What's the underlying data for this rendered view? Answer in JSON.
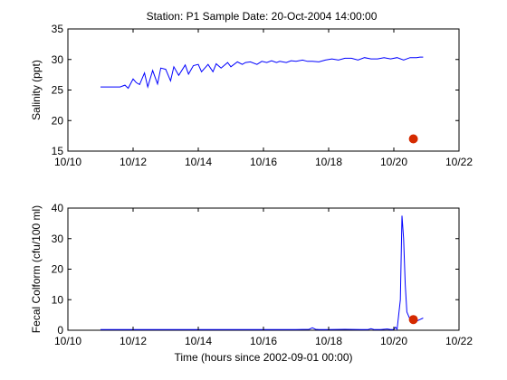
{
  "chart_data": [
    {
      "type": "line",
      "title": "Station: P1  Sample Date: 20-Oct-2004 14:00:00",
      "xlabel": "",
      "ylabel": "Salinity (ppt)",
      "xlim": [
        "10/10",
        "10/22"
      ],
      "ylim": [
        15,
        35
      ],
      "x_ticks": [
        "10/10",
        "10/12",
        "10/14",
        "10/16",
        "10/18",
        "10/20",
        "10/22"
      ],
      "y_ticks": [
        15,
        20,
        25,
        30,
        35
      ],
      "grid": false,
      "colors": {
        "line": "#0000ff",
        "marker": "#d52a00"
      },
      "series": [
        {
          "x_days_from_1010": [
            1.0,
            1.3,
            1.6,
            1.75,
            1.85,
            2.0,
            2.1,
            2.2,
            2.35,
            2.45,
            2.6,
            2.75,
            2.85,
            3.0,
            3.15,
            3.25,
            3.4,
            3.6,
            3.7,
            3.85,
            4.0,
            4.1,
            4.3,
            4.45,
            4.55,
            4.7,
            4.9,
            5.0,
            5.2,
            5.35,
            5.45,
            5.6,
            5.8,
            5.95,
            6.1,
            6.25,
            6.4,
            6.5,
            6.7,
            6.85,
            7.0,
            7.2,
            7.35,
            7.5,
            7.7,
            7.9,
            8.1,
            8.3,
            8.5,
            8.7,
            8.9,
            9.1,
            9.3,
            9.5,
            9.7,
            9.9,
            10.1,
            10.3,
            10.5,
            10.7,
            10.8,
            10.9
          ],
          "y": [
            25.5,
            25.5,
            25.5,
            25.8,
            25.3,
            26.8,
            26.2,
            25.9,
            27.8,
            25.5,
            28.2,
            26.0,
            28.6,
            28.4,
            26.5,
            28.8,
            27.4,
            29.1,
            27.6,
            29.0,
            29.2,
            28.0,
            29.2,
            28.0,
            29.3,
            28.6,
            29.5,
            28.8,
            29.6,
            29.2,
            29.5,
            29.6,
            29.2,
            29.7,
            29.5,
            29.8,
            29.5,
            29.7,
            29.5,
            29.8,
            29.7,
            29.9,
            29.7,
            29.7,
            29.6,
            29.9,
            30.1,
            29.9,
            30.2,
            30.2,
            29.9,
            30.3,
            30.1,
            30.1,
            30.3,
            30.1,
            30.3,
            29.9,
            30.3,
            30.3,
            30.4,
            30.4
          ]
        }
      ],
      "sample_point": {
        "x_days_from_1010": 10.6,
        "y": 17.0
      }
    },
    {
      "type": "line",
      "title": "",
      "xlabel": "Time (hours since 2002-09-01 00:00)",
      "ylabel": "Fecal Colform (cfu/100 ml)",
      "xlim": [
        "10/10",
        "10/22"
      ],
      "ylim": [
        0,
        40
      ],
      "x_ticks": [
        "10/10",
        "10/12",
        "10/14",
        "10/16",
        "10/18",
        "10/20",
        "10/22"
      ],
      "y_ticks": [
        0,
        10,
        20,
        30,
        40
      ],
      "grid": false,
      "colors": {
        "line": "#0000ff",
        "marker": "#d52a00"
      },
      "series": [
        {
          "x_days_from_1010": [
            1.0,
            2.0,
            3.0,
            4.0,
            5.0,
            6.0,
            7.0,
            7.4,
            7.5,
            7.6,
            7.7,
            8.0,
            8.5,
            9.0,
            9.2,
            9.3,
            9.4,
            9.6,
            9.8,
            9.9,
            10.0,
            10.05,
            10.1,
            10.2,
            10.25,
            10.3,
            10.35,
            10.4,
            10.5,
            10.6,
            10.7,
            10.8,
            10.9
          ],
          "y": [
            0.2,
            0.2,
            0.2,
            0.2,
            0.2,
            0.2,
            0.2,
            0.3,
            0.8,
            0.3,
            0.2,
            0.2,
            0.3,
            0.2,
            0.2,
            0.5,
            0.2,
            0.2,
            0.4,
            0.2,
            0.2,
            1.0,
            0.3,
            10.0,
            37.5,
            30.0,
            15.0,
            6.0,
            3.5,
            2.5,
            3.0,
            3.5,
            4.0
          ]
        }
      ],
      "sample_point": {
        "x_days_from_1010": 10.6,
        "y": 3.5
      }
    }
  ]
}
